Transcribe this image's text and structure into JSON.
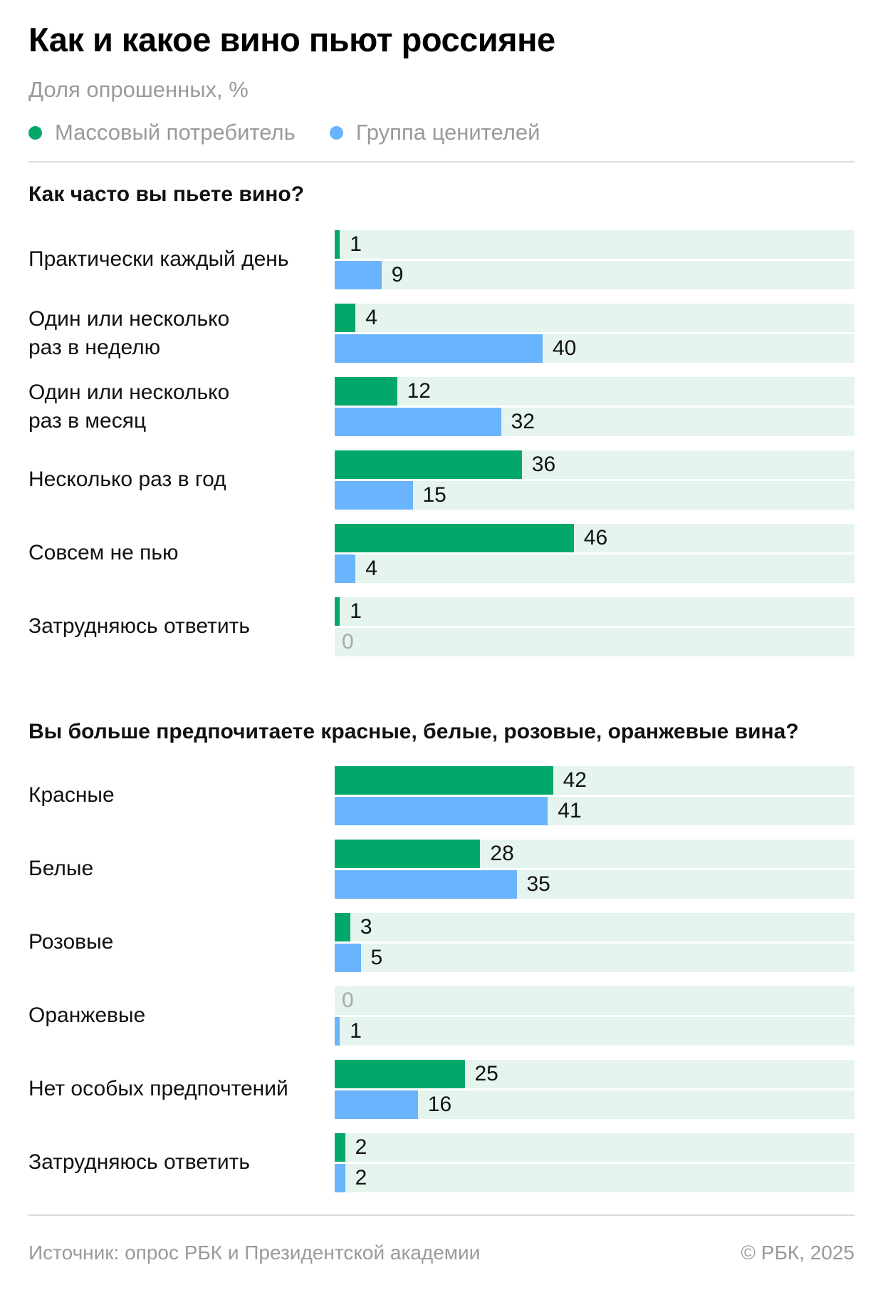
{
  "title": "Как и какое вино пьют россияне",
  "subtitle": "Доля опрошенных, %",
  "legend": [
    {
      "label": "Массовый потребитель",
      "color": "#02a86a"
    },
    {
      "label": "Группа ценителей",
      "color": "#69b4fc"
    }
  ],
  "chart_data": [
    {
      "type": "bar",
      "orientation": "horizontal",
      "title": "Как часто вы пьете вино?",
      "unit": "%",
      "xlim": [
        0,
        100
      ],
      "categories": [
        "Практически каждый день",
        "Один или несколько\nраз в неделю",
        "Один или несколько\nраз в месяц",
        "Несколько раз в год",
        "Совсем не пью",
        "Затрудняюсь ответить"
      ],
      "series": [
        {
          "name": "Массовый потребитель",
          "color": "#02a86a",
          "values": [
            1,
            4,
            12,
            36,
            46,
            1
          ]
        },
        {
          "name": "Группа ценителей",
          "color": "#69b4fc",
          "values": [
            9,
            40,
            32,
            15,
            4,
            0
          ]
        }
      ]
    },
    {
      "type": "bar",
      "orientation": "horizontal",
      "title": "Вы больше предпочитаете красные, белые, розовые, оранжевые вина?",
      "unit": "%",
      "xlim": [
        0,
        100
      ],
      "categories": [
        "Красные",
        "Белые",
        "Розовые",
        "Оранжевые",
        "Нет особых предпочтений",
        "Затрудняюсь ответить"
      ],
      "series": [
        {
          "name": "Массовый потребитель",
          "color": "#02a86a",
          "values": [
            42,
            28,
            3,
            0,
            25,
            2
          ]
        },
        {
          "name": "Группа ценителей",
          "color": "#69b4fc",
          "values": [
            41,
            35,
            5,
            1,
            16,
            2
          ]
        }
      ]
    }
  ],
  "footer": {
    "source": "Источник: опрос РБК и Президентской академии",
    "copyright": "© РБК, 2025"
  }
}
